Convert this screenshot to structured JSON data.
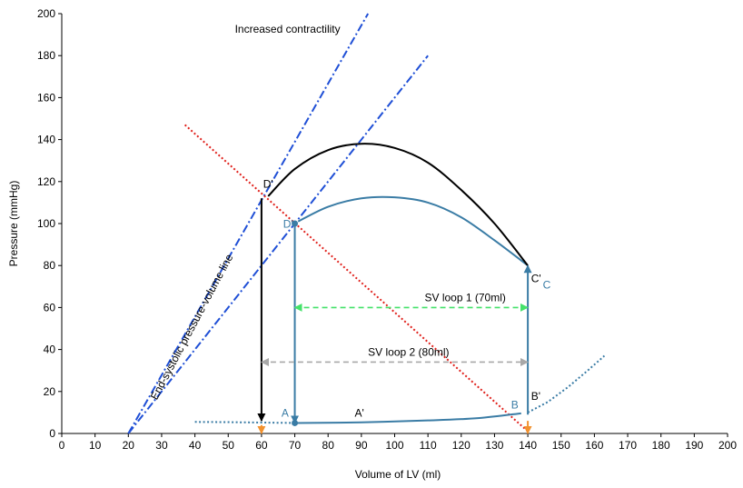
{
  "chart_data": {
    "type": "line",
    "xlabel": "Volume of LV (ml)",
    "ylabel": "Pressure (mmHg)",
    "xlim": [
      0,
      200
    ],
    "ylim": [
      0,
      200
    ],
    "xticks": [
      0,
      10,
      20,
      30,
      40,
      50,
      60,
      70,
      80,
      90,
      100,
      110,
      120,
      130,
      140,
      150,
      160,
      170,
      180,
      190,
      200
    ],
    "yticks": [
      0,
      20,
      40,
      60,
      80,
      100,
      120,
      140,
      160,
      180,
      200
    ],
    "grid": false,
    "colors": {
      "black": "#000000",
      "steel": "#3a7ca5",
      "blue": "#1f4fd6",
      "red": "#e0201b",
      "green": "#44e26a",
      "gray": "#a8a8a8",
      "orange": "#f2922f",
      "tick_zero": "#2a5fb0"
    },
    "lines": [
      {
        "id": "espvr-increased",
        "style": "dash-dot",
        "color": "#1f4fd6",
        "points": [
          [
            20,
            0
          ],
          [
            92,
            200
          ]
        ]
      },
      {
        "id": "espvr",
        "style": "dash-dot",
        "color": "#1f4fd6",
        "points": [
          [
            20,
            0
          ],
          [
            110,
            180
          ]
        ]
      },
      {
        "id": "afterload",
        "style": "dotted",
        "color": "#e0201b",
        "points": [
          [
            37,
            147
          ],
          [
            140,
            1
          ]
        ]
      },
      {
        "id": "edpvr-left",
        "style": "dotted",
        "color": "#3a7ca5",
        "points": [
          [
            40,
            5.5
          ],
          [
            50,
            5.4
          ],
          [
            60,
            5.2
          ],
          [
            70,
            5
          ]
        ]
      },
      {
        "id": "edpvr-right",
        "style": "dotted",
        "color": "#3a7ca5",
        "points": [
          [
            140,
            10
          ],
          [
            146,
            15
          ],
          [
            152,
            22
          ],
          [
            158,
            30
          ],
          [
            163,
            37
          ]
        ]
      },
      {
        "id": "filling",
        "style": "solid",
        "color": "#3a7ca5",
        "points": [
          [
            70,
            5
          ],
          [
            90,
            5.3
          ],
          [
            110,
            6.2
          ],
          [
            125,
            7.3
          ],
          [
            138,
            9.6
          ]
        ]
      },
      {
        "id": "ejection-loop1",
        "style": "solid",
        "color": "#3a7ca5",
        "points": [
          [
            140,
            80
          ],
          [
            130,
            92
          ],
          [
            120,
            103
          ],
          [
            110,
            110
          ],
          [
            100,
            112.5
          ],
          [
            90,
            112
          ],
          [
            80,
            108
          ],
          [
            71,
            101
          ]
        ]
      },
      {
        "id": "ejection-loop2",
        "style": "solid",
        "color": "#000000",
        "points": [
          [
            140,
            80
          ],
          [
            130,
            100
          ],
          [
            120,
            116
          ],
          [
            110,
            129
          ],
          [
            100,
            136
          ],
          [
            90,
            138
          ],
          [
            80,
            135
          ],
          [
            70,
            126
          ],
          [
            62,
            113
          ]
        ]
      }
    ],
    "arrows": [
      {
        "id": "iso-contraction",
        "color": "#3a7ca5",
        "from": [
          140,
          9
        ],
        "to": [
          140,
          80
        ]
      },
      {
        "id": "iso-relax-loop1",
        "color": "#3a7ca5",
        "from": [
          70,
          100
        ],
        "to": [
          70,
          5
        ]
      },
      {
        "id": "iso-relax-loop2",
        "color": "#000000",
        "from": [
          60,
          112
        ],
        "to": [
          60,
          6
        ]
      },
      {
        "id": "vol-marker-60",
        "color": "#f2922f",
        "from": [
          60,
          4
        ],
        "to": [
          60,
          0
        ]
      },
      {
        "id": "vol-marker-140",
        "color": "#f2922f",
        "from": [
          140,
          6
        ],
        "to": [
          140,
          0
        ]
      }
    ],
    "double_arrows": [
      {
        "id": "sv-loop-1",
        "style": "dashed",
        "color": "#44e26a",
        "from": [
          70,
          60
        ],
        "to": [
          140,
          60
        ]
      },
      {
        "id": "sv-loop-2",
        "style": "dashed",
        "color": "#a8a8a8",
        "from": [
          60,
          34
        ],
        "to": [
          140,
          34
        ]
      }
    ],
    "points": [
      {
        "id": "point-a",
        "x": 70,
        "y": 5,
        "color": "#3a7ca5"
      },
      {
        "id": "point-d",
        "x": 70,
        "y": 100,
        "color": "#3a7ca5"
      }
    ],
    "annotations": [
      {
        "id": "increased-contractility",
        "text": "Increased contractility",
        "x": 52,
        "y": 191,
        "color": "#000000"
      },
      {
        "id": "esp-line",
        "text": "End-systolic pressure-volume line",
        "x": 40,
        "y": 50,
        "color": "#000000",
        "rotate": -62
      },
      {
        "id": "sv-loop-1",
        "text": "SV loop 1 (70ml)",
        "x": 109,
        "y": 63,
        "color": "#000000"
      },
      {
        "id": "sv-loop-2",
        "text": "SV loop 2 (80ml)",
        "x": 92,
        "y": 37,
        "color": "#000000"
      },
      {
        "id": "d-prime-black",
        "text": "D'",
        "x": 60.5,
        "y": 117,
        "color": "#000000"
      },
      {
        "id": "d-prime-steel",
        "text": "D'",
        "x": 66.5,
        "y": 98,
        "color": "#3a7ca5"
      },
      {
        "id": "c-prime",
        "text": "C'",
        "x": 141,
        "y": 72,
        "color": "#000000"
      },
      {
        "id": "c",
        "text": "C",
        "x": 144.5,
        "y": 69,
        "color": "#3a7ca5"
      },
      {
        "id": "b-prime",
        "text": "B'",
        "x": 141,
        "y": 16,
        "color": "#000000"
      },
      {
        "id": "b",
        "text": "B",
        "x": 135,
        "y": 12,
        "color": "#3a7ca5"
      },
      {
        "id": "a",
        "text": "A",
        "x": 66,
        "y": 8,
        "color": "#3a7ca5"
      },
      {
        "id": "a-prime",
        "text": "A'",
        "x": 88,
        "y": 8,
        "color": "#000000"
      }
    ]
  }
}
